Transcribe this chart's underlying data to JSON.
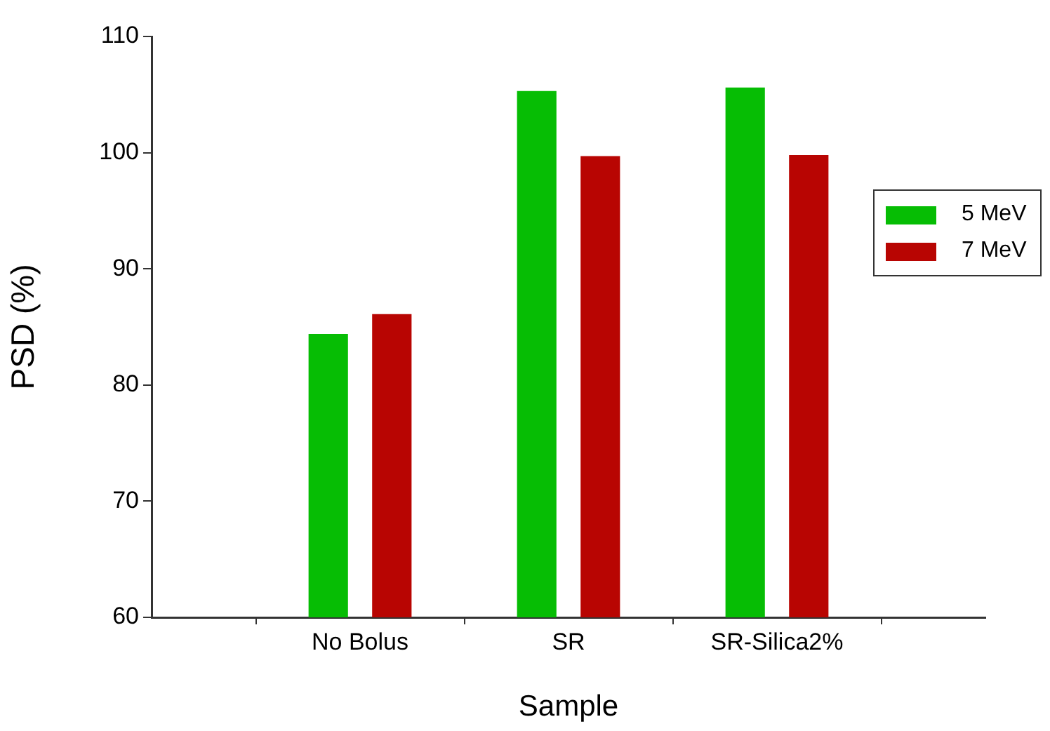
{
  "chart_data": {
    "type": "bar",
    "xlabel": "Sample",
    "ylabel": "PSD (%)",
    "categories": [
      "No Bolus",
      "SR",
      "SR-Silica2%"
    ],
    "series": [
      {
        "name": "5 MeV",
        "color": "#06bd04",
        "values": [
          84.4,
          105.3,
          105.6
        ]
      },
      {
        "name": "7 MeV",
        "color": "#b80502",
        "values": [
          86.1,
          99.7,
          99.8
        ]
      }
    ],
    "ylim": [
      60,
      110
    ],
    "yticks": [
      60,
      70,
      80,
      90,
      100,
      110
    ],
    "grid": false,
    "legend": "right"
  }
}
